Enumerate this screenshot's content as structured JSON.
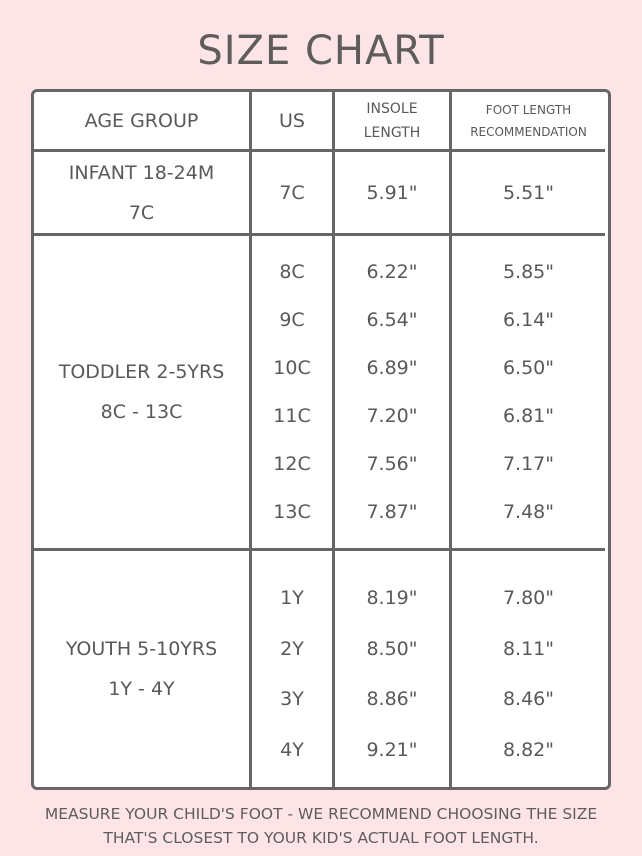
{
  "title": "SIZE CHART",
  "headers": {
    "age_group": "AGE GROUP",
    "us": "US",
    "insole_1": "INSOLE",
    "insole_2": "LENGTH",
    "foot_1": "FOOT LENGTH",
    "foot_2": "RECOMMENDATION"
  },
  "groups": [
    {
      "name": "INFANT 18-24M",
      "range": "7C",
      "rows": [
        {
          "us": "7C",
          "insole": "5.91\"",
          "foot": "5.51\""
        }
      ]
    },
    {
      "name": "TODDLER 2-5YRS",
      "range": "8C - 13C",
      "rows": [
        {
          "us": "8C",
          "insole": "6.22\"",
          "foot": "5.85\""
        },
        {
          "us": "9C",
          "insole": "6.54\"",
          "foot": "6.14\""
        },
        {
          "us": "10C",
          "insole": "6.89\"",
          "foot": "6.50\""
        },
        {
          "us": "11C",
          "insole": "7.20\"",
          "foot": "6.81\""
        },
        {
          "us": "12C",
          "insole": "7.56\"",
          "foot": "7.17\""
        },
        {
          "us": "13C",
          "insole": "7.87\"",
          "foot": "7.48\""
        }
      ]
    },
    {
      "name": "YOUTH 5-10YRS",
      "range": "1Y - 4Y",
      "rows": [
        {
          "us": "1Y",
          "insole": "8.19\"",
          "foot": "7.80\""
        },
        {
          "us": "2Y",
          "insole": "8.50\"",
          "foot": "8.11\""
        },
        {
          "us": "3Y",
          "insole": "8.86\"",
          "foot": "8.46\""
        },
        {
          "us": "4Y",
          "insole": "9.21\"",
          "foot": "8.82\""
        }
      ]
    }
  ],
  "footer": {
    "line1": "MEASURE YOUR CHILD'S FOOT - WE RECOMMEND CHOOSING THE SIZE",
    "line2": "THAT'S CLOSEST TO YOUR KID'S ACTUAL FOOT LENGTH."
  },
  "colors": {
    "background": "#fde5e7",
    "border": "#676565",
    "text": "#5a5858"
  }
}
